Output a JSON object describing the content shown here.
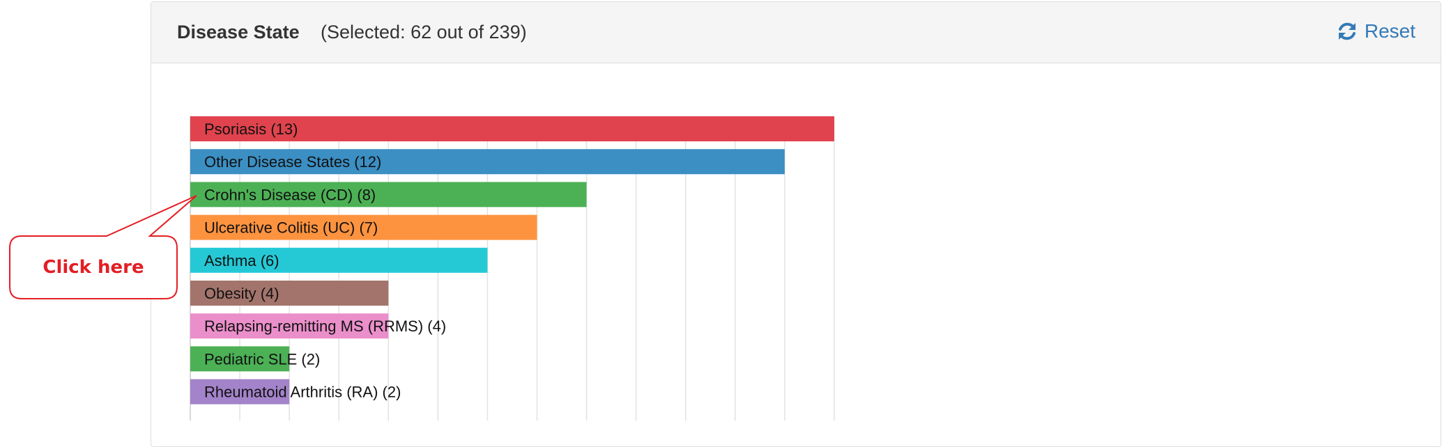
{
  "header": {
    "title": "Disease State",
    "subtitle": "(Selected: 62 out of 239)",
    "reset_label": "Reset",
    "reset_icon": "refresh-icon"
  },
  "callout": {
    "text": "Click here",
    "text_color": "#e31e24",
    "border_color": "#e31e24"
  },
  "chart_data": {
    "type": "bar",
    "orientation": "horizontal",
    "categories": [
      "Psoriasis (13)",
      "Other Disease States (12)",
      "Crohn's Disease (CD) (8)",
      "Ulcerative Colitis (UC) (7)",
      "Asthma (6)",
      "Obesity (4)",
      "Relapsing-remitting MS (RRMS) (4)",
      "Pediatric SLE (2)",
      "Rheumatoid Arthritis (RA) (2)"
    ],
    "values": [
      13,
      12,
      8,
      7,
      6,
      4,
      4,
      2,
      2
    ],
    "colors": [
      "#e0434d",
      "#3b8fc3",
      "#4cb155",
      "#fd933f",
      "#25c9d6",
      "#a3746c",
      "#eb8fcb",
      "#4cb155",
      "#a383c9"
    ],
    "xlim": [
      0,
      13
    ],
    "grid": true
  }
}
